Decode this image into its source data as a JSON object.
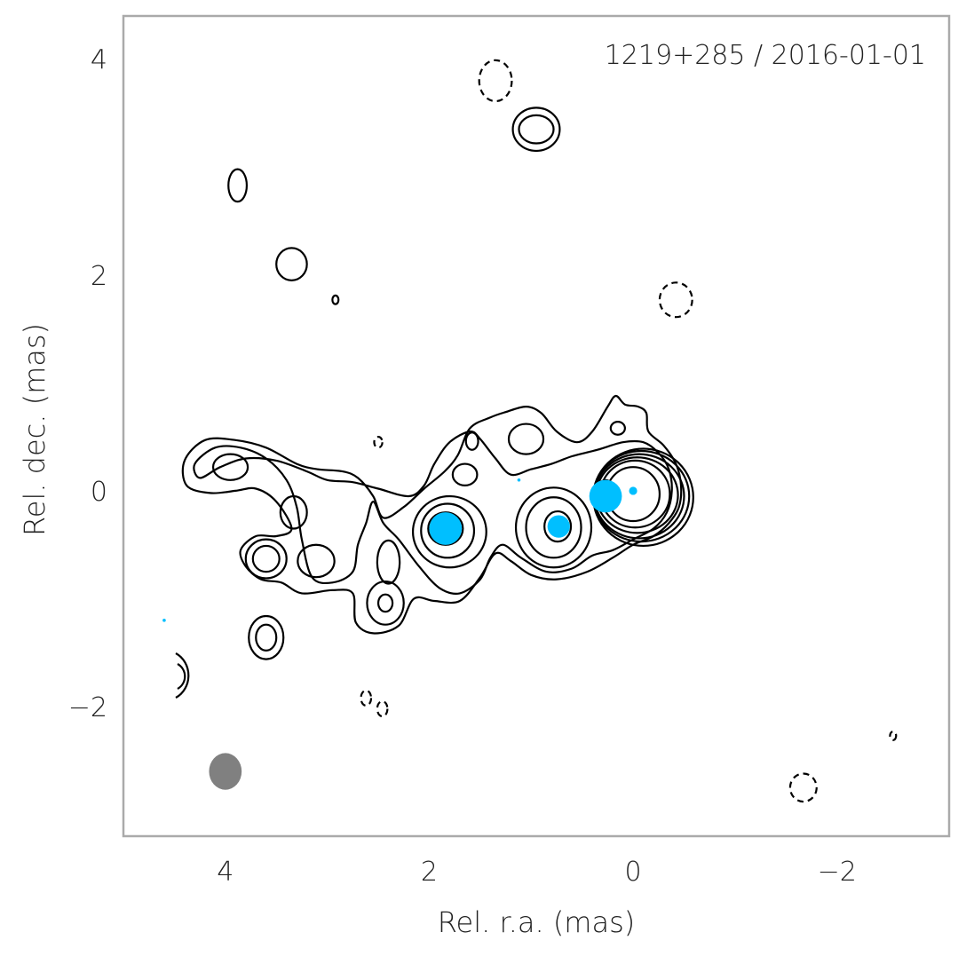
{
  "chart_data": {
    "type": "scatter",
    "title": "",
    "annotation": "1219+285 / 2016-01-01",
    "xlabel": "Rel. r.a. (mas)",
    "ylabel": "Rel. dec. (mas)",
    "xlim": [
      5.0,
      -3.1
    ],
    "ylim": [
      -3.2,
      4.4
    ],
    "x_reversed": true,
    "xticks": [
      4,
      2,
      0,
      -2
    ],
    "xtick_labels": [
      "4",
      "2",
      "0",
      "−2"
    ],
    "yticks": [
      4,
      2,
      0,
      -2
    ],
    "ytick_labels": [
      "4",
      "2",
      "0",
      "−2"
    ],
    "grid": false,
    "legend": "none",
    "colors": {
      "components": "#00bfff",
      "contours": "#000000",
      "beam": "#808080",
      "frame": "#aaaaaa"
    },
    "components": [
      {
        "x": 0.0,
        "y": 0.0,
        "size": 0.04
      },
      {
        "x": 0.27,
        "y": -0.05,
        "size": 0.16
      },
      {
        "x": 0.73,
        "y": -0.33,
        "size": 0.11
      },
      {
        "x": 1.84,
        "y": -0.35,
        "size": 0.16
      },
      {
        "x": 1.12,
        "y": 0.1,
        "size": 0.01
      },
      {
        "x": 4.6,
        "y": -1.2,
        "size": 0.01
      }
    ],
    "beam": {
      "x": 4.0,
      "y": -2.6,
      "major": 0.34,
      "minor": 0.32
    },
    "contours": {
      "core_rings": [
        {
          "cx": 0.0,
          "cy": -0.03,
          "rx": 0.26,
          "ry": 0.25
        },
        {
          "cx": -0.02,
          "cy": -0.03,
          "rx": 0.34,
          "ry": 0.31
        },
        {
          "cx": -0.04,
          "cy": -0.04,
          "rx": 0.4,
          "ry": 0.35
        },
        {
          "cx": -0.06,
          "cy": -0.05,
          "rx": 0.44,
          "ry": 0.39
        },
        {
          "cx": -0.08,
          "cy": -0.05,
          "rx": 0.47,
          "ry": 0.42
        },
        {
          "cx": -0.1,
          "cy": -0.06,
          "rx": 0.49,
          "ry": 0.45
        }
      ],
      "rings": [
        {
          "cx": 0.27,
          "cy": -0.03,
          "rx": 0.09,
          "ry": 0.13
        },
        {
          "cx": 0.74,
          "cy": -0.33,
          "rx": 0.13,
          "ry": 0.14
        },
        {
          "cx": 1.84,
          "cy": -0.35,
          "rx": 0.17,
          "ry": 0.15
        },
        {
          "cx": 1.82,
          "cy": -0.37,
          "rx": 0.26,
          "ry": 0.25
        },
        {
          "cx": 1.8,
          "cy": -0.38,
          "rx": 0.36,
          "ry": 0.33
        },
        {
          "cx": 0.78,
          "cy": -0.34,
          "rx": 0.27,
          "ry": 0.28
        },
        {
          "cx": 0.78,
          "cy": -0.34,
          "rx": 0.37,
          "ry": 0.37
        },
        {
          "cx": 0.95,
          "cy": 3.35,
          "rx": 0.17,
          "ry": 0.13
        },
        {
          "cx": 0.95,
          "cy": 3.35,
          "rx": 0.23,
          "ry": 0.2
        },
        {
          "cx": 3.88,
          "cy": 2.83,
          "rx": 0.09,
          "ry": 0.15
        },
        {
          "cx": 3.35,
          "cy": 2.1,
          "rx": 0.15,
          "ry": 0.15
        },
        {
          "cx": 2.92,
          "cy": 1.77,
          "rx": 0.03,
          "ry": 0.04
        },
        {
          "cx": 3.33,
          "cy": -0.2,
          "rx": 0.13,
          "ry": 0.15
        },
        {
          "cx": 3.11,
          "cy": -0.65,
          "rx": 0.18,
          "ry": 0.15
        },
        {
          "cx": 3.6,
          "cy": -0.63,
          "rx": 0.13,
          "ry": 0.12
        },
        {
          "cx": 3.6,
          "cy": -0.63,
          "rx": 0.2,
          "ry": 0.18
        },
        {
          "cx": 3.6,
          "cy": -1.36,
          "rx": 0.1,
          "ry": 0.12
        },
        {
          "cx": 3.6,
          "cy": -1.36,
          "rx": 0.17,
          "ry": 0.2
        },
        {
          "cx": 2.43,
          "cy": -1.04,
          "rx": 0.07,
          "ry": 0.08
        },
        {
          "cx": 2.43,
          "cy": -1.04,
          "rx": 0.18,
          "ry": 0.2
        },
        {
          "cx": 2.4,
          "cy": -0.66,
          "rx": 0.11,
          "ry": 0.2
        },
        {
          "cx": 3.95,
          "cy": 0.22,
          "rx": 0.17,
          "ry": 0.12
        },
        {
          "cx": 1.65,
          "cy": 0.15,
          "rx": 0.12,
          "ry": 0.1
        },
        {
          "cx": 1.05,
          "cy": 0.48,
          "rx": 0.17,
          "ry": 0.14
        },
        {
          "cx": 0.15,
          "cy": 0.58,
          "rx": 0.07,
          "ry": 0.06
        },
        {
          "cx": 1.58,
          "cy": 0.46,
          "rx": 0.06,
          "ry": 0.08
        }
      ],
      "envelopes": [
        {
          "points": [
            [
              4.4,
              0.28
            ],
            [
              4.2,
              0.47
            ],
            [
              3.9,
              0.47
            ],
            [
              3.6,
              0.4
            ],
            [
              3.3,
              0.25
            ],
            [
              3.1,
              0.2
            ],
            [
              2.85,
              0.18
            ],
            [
              2.7,
              0.12
            ],
            [
              2.55,
              -0.05
            ],
            [
              2.45,
              -0.25
            ],
            [
              2.25,
              -0.15
            ],
            [
              2.05,
              0.02
            ],
            [
              1.85,
              0.18
            ],
            [
              1.72,
              0.33
            ],
            [
              1.6,
              0.58
            ],
            [
              1.4,
              0.68
            ],
            [
              1.25,
              0.73
            ],
            [
              1.05,
              0.78
            ],
            [
              0.9,
              0.72
            ],
            [
              0.75,
              0.55
            ],
            [
              0.55,
              0.45
            ],
            [
              0.4,
              0.55
            ],
            [
              0.25,
              0.78
            ],
            [
              0.17,
              0.88
            ],
            [
              0.08,
              0.8
            ],
            [
              -0.05,
              0.78
            ],
            [
              -0.13,
              0.72
            ],
            [
              -0.15,
              0.55
            ],
            [
              -0.3,
              0.42
            ],
            [
              -0.42,
              0.25
            ],
            [
              -0.47,
              0.05
            ],
            [
              -0.45,
              -0.15
            ],
            [
              -0.35,
              -0.3
            ],
            [
              -0.2,
              -0.42
            ],
            [
              0.0,
              -0.5
            ],
            [
              0.2,
              -0.62
            ],
            [
              0.45,
              -0.75
            ],
            [
              0.75,
              -0.82
            ],
            [
              1.0,
              -0.78
            ],
            [
              1.2,
              -0.65
            ],
            [
              1.35,
              -0.58
            ],
            [
              1.5,
              -0.8
            ],
            [
              1.7,
              -1.02
            ],
            [
              1.95,
              -1.02
            ],
            [
              2.15,
              -1.0
            ],
            [
              2.3,
              -1.25
            ],
            [
              2.55,
              -1.32
            ],
            [
              2.72,
              -1.22
            ],
            [
              2.75,
              -0.95
            ],
            [
              2.95,
              -0.92
            ],
            [
              3.25,
              -0.95
            ],
            [
              3.45,
              -0.85
            ],
            [
              3.65,
              -0.82
            ],
            [
              3.8,
              -0.7
            ],
            [
              3.85,
              -0.55
            ],
            [
              3.7,
              -0.42
            ],
            [
              3.5,
              -0.42
            ],
            [
              3.35,
              -0.35
            ],
            [
              3.5,
              -0.1
            ],
            [
              3.7,
              0.02
            ],
            [
              3.9,
              0.0
            ],
            [
              4.15,
              -0.02
            ],
            [
              4.38,
              0.05
            ]
          ]
        },
        {
          "points": [
            [
              4.3,
              0.25
            ],
            [
              4.1,
              0.4
            ],
            [
              3.85,
              0.4
            ],
            [
              3.6,
              0.3
            ],
            [
              3.4,
              0.1
            ],
            [
              3.3,
              -0.15
            ],
            [
              3.25,
              -0.45
            ],
            [
              3.15,
              -0.8
            ],
            [
              2.95,
              -0.85
            ],
            [
              2.75,
              -0.75
            ],
            [
              2.7,
              -0.5
            ],
            [
              2.62,
              -0.3
            ],
            [
              2.55,
              -0.1
            ],
            [
              2.45,
              -0.3
            ],
            [
              2.3,
              -0.45
            ],
            [
              2.1,
              -0.7
            ],
            [
              1.9,
              -0.9
            ],
            [
              1.7,
              -0.95
            ],
            [
              1.5,
              -0.82
            ],
            [
              1.4,
              -0.62
            ],
            [
              1.28,
              -0.5
            ],
            [
              1.1,
              -0.62
            ],
            [
              0.85,
              -0.75
            ],
            [
              0.6,
              -0.72
            ],
            [
              0.4,
              -0.6
            ],
            [
              0.2,
              -0.55
            ],
            [
              0.0,
              -0.45
            ],
            [
              -0.2,
              -0.35
            ],
            [
              -0.33,
              -0.2
            ],
            [
              -0.38,
              0.0
            ],
            [
              -0.35,
              0.2
            ],
            [
              -0.25,
              0.35
            ],
            [
              -0.1,
              0.45
            ],
            [
              0.1,
              0.45
            ],
            [
              0.35,
              0.38
            ],
            [
              0.6,
              0.32
            ],
            [
              0.8,
              0.25
            ],
            [
              1.0,
              0.2
            ],
            [
              1.2,
              0.15
            ],
            [
              1.35,
              0.3
            ],
            [
              1.5,
              0.48
            ],
            [
              1.6,
              0.55
            ],
            [
              1.8,
              0.45
            ],
            [
              1.95,
              0.25
            ],
            [
              2.05,
              0.05
            ],
            [
              2.2,
              -0.05
            ],
            [
              2.5,
              0.02
            ],
            [
              2.75,
              0.08
            ],
            [
              3.0,
              0.1
            ],
            [
              3.2,
              0.18
            ],
            [
              3.5,
              0.28
            ],
            [
              3.8,
              0.3
            ],
            [
              4.05,
              0.22
            ],
            [
              4.25,
              0.12
            ]
          ]
        }
      ],
      "negative": [
        {
          "cx": 1.35,
          "cy": 3.8,
          "rx": 0.16,
          "ry": 0.19
        },
        {
          "cx": -0.42,
          "cy": 1.77,
          "rx": 0.16,
          "ry": 0.16
        },
        {
          "cx": -1.67,
          "cy": -2.75,
          "rx": 0.13,
          "ry": 0.13
        },
        {
          "cx": 2.62,
          "cy": -1.92,
          "rx": 0.05,
          "ry": 0.07
        },
        {
          "cx": 2.46,
          "cy": -2.02,
          "rx": 0.05,
          "ry": 0.07
        },
        {
          "cx": 2.5,
          "cy": 0.45,
          "rx": 0.04,
          "ry": 0.05
        },
        {
          "cx": -2.55,
          "cy": -2.27,
          "rx": 0.03,
          "ry": 0.04
        }
      ]
    }
  }
}
